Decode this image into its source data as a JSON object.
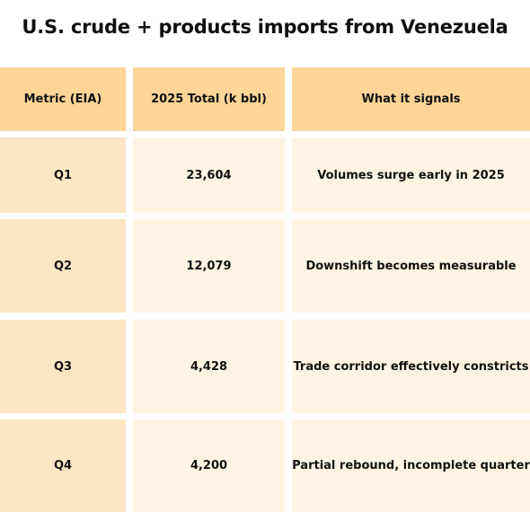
{
  "chart_data": {
    "type": "table",
    "title": "U.S. crude + products imports from Venezuela",
    "columns": [
      "Metric (EIA)",
      "2025 Total (k bbl)",
      "What it signals"
    ],
    "rows": [
      [
        "Q1",
        "23,604",
        "Volumes surge early in 2025"
      ],
      [
        "Q2",
        "12,079",
        "Downshift becomes measurable"
      ],
      [
        "Q3",
        "4,428",
        "Trade corridor effectively constricts"
      ],
      [
        "Q4",
        "4,200",
        "Partial rebound, incomplete quarter"
      ]
    ]
  },
  "colors": {
    "header": "#fdd597",
    "first_column": "#fde6c4",
    "body": "#fff4e4"
  }
}
